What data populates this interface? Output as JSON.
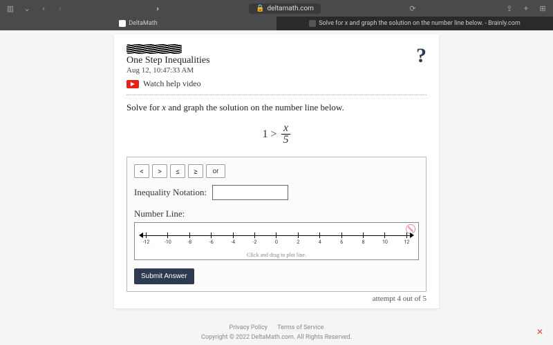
{
  "browser": {
    "url_display": "deltamath.com",
    "tabs": [
      {
        "label": "DeltaMath",
        "active": true
      },
      {
        "label": "Solve for x and graph the solution on the number line below. - Brainly.com",
        "active": false
      }
    ]
  },
  "header": {
    "assignment_title": "One Step Inequalities",
    "timestamp": "Aug 12, 10:47:33 AM",
    "watch_label": "Watch help video"
  },
  "problem": {
    "prompt_pre": "Solve for ",
    "prompt_var": "x",
    "prompt_post": " and graph the solution on the number line below.",
    "equation_lhs": "1 >",
    "equation_frac_num": "x",
    "equation_frac_den": "5"
  },
  "panel": {
    "ops": [
      "<",
      ">",
      "≤",
      "≥",
      "or"
    ],
    "inequality_label": "Inequality Notation:",
    "inequality_value": "",
    "number_line_label": "Number Line:",
    "ticks": [
      "-12",
      "-10",
      "-8",
      "-6",
      "-4",
      "-2",
      "0",
      "2",
      "4",
      "6",
      "8",
      "10",
      "12"
    ],
    "hint": "Click and drag to plot line.",
    "submit_label": "Submit Answer",
    "attempt_text": "attempt 4 out of 5"
  },
  "footer": {
    "privacy": "Privacy Policy",
    "terms": "Terms of Service",
    "copyright": "Copyright © 2022 DeltaMath.com. All Rights Reserved."
  },
  "colors": {
    "browser_bar": "#4a4a4c",
    "tabs_bar": "#2a2a2c",
    "card_bg": "#ffffff",
    "submit_bg": "#2e3a4f",
    "yt_red": "#e62117"
  }
}
